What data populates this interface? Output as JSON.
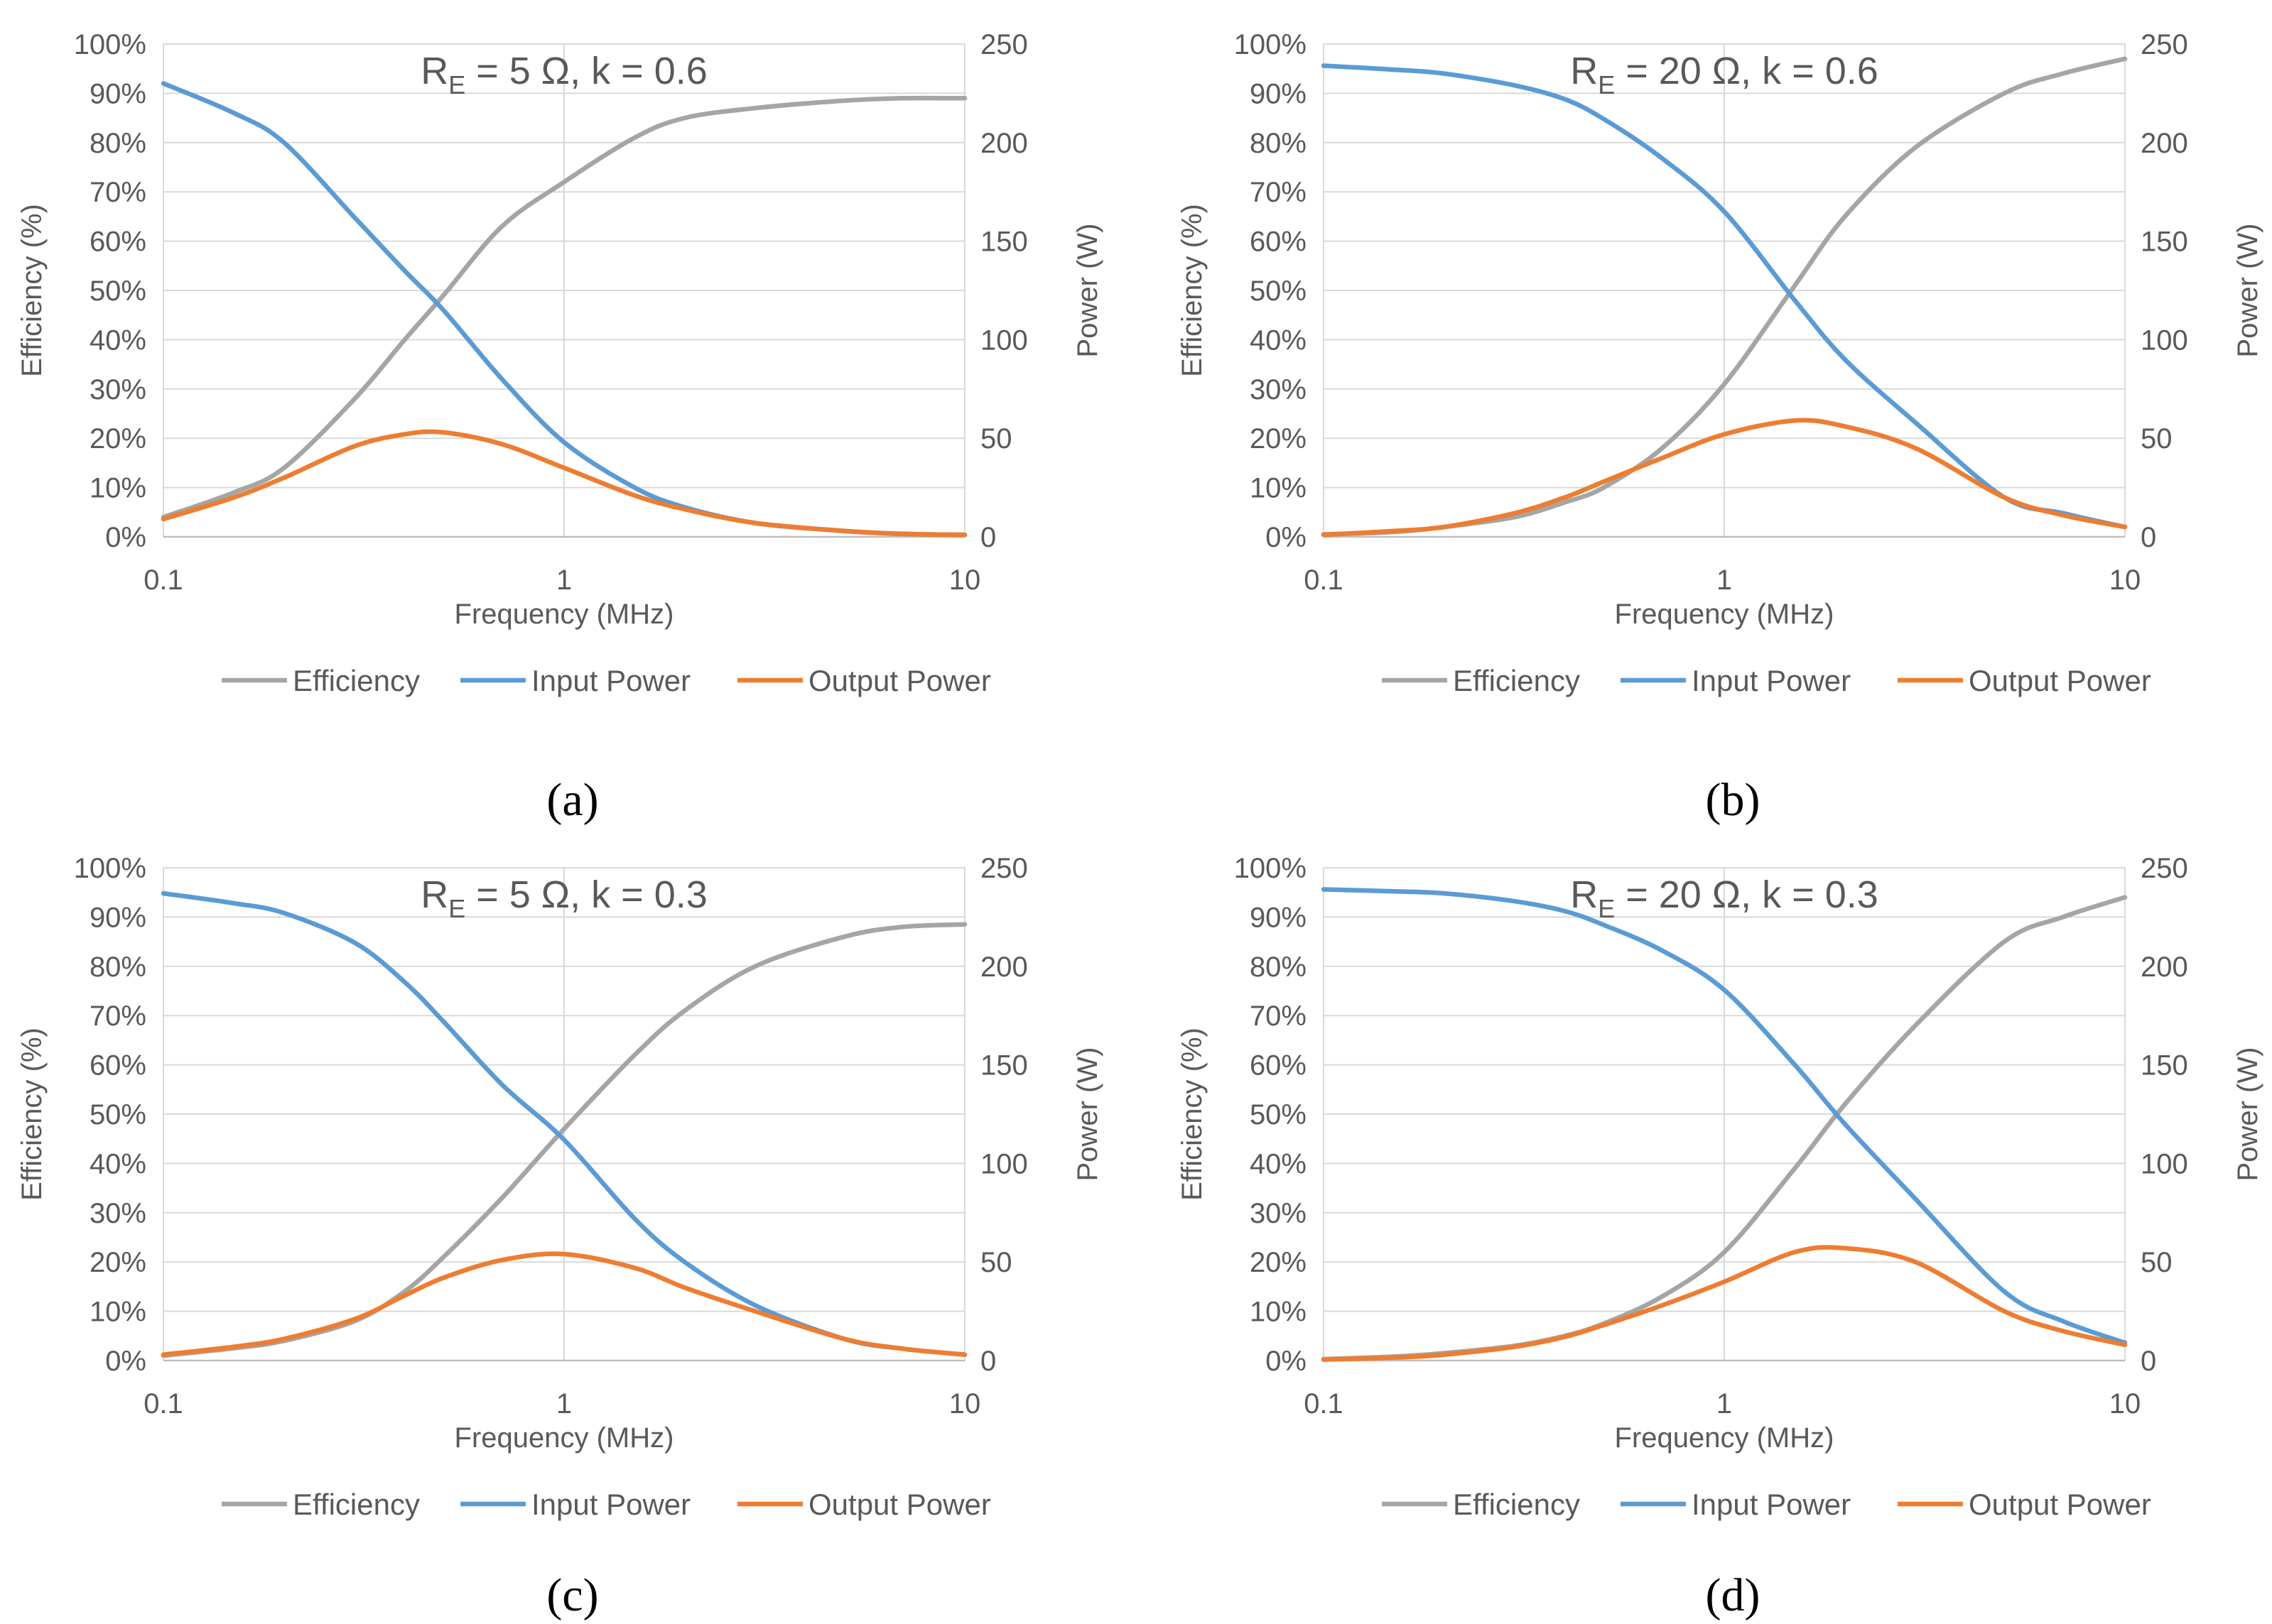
{
  "chart_data": [
    {
      "type": "line",
      "panel_label": "(a)",
      "title": "R_E = 5 Ω, k = 0.6",
      "title_main": "R",
      "title_sub": "E",
      "title_rest": " = 5 Ω, k = 0.6",
      "xlabel": "Frequency (MHz)",
      "ylabel_left": "Efficiency (%)",
      "ylabel_right": "Power (W)",
      "xscale": "log",
      "xlim": [
        0.1,
        10
      ],
      "x_ticks": [
        "0.1",
        "1",
        "10"
      ],
      "ylim_left": [
        0,
        100
      ],
      "y_ticks_left": [
        "0%",
        "10%",
        "20%",
        "30%",
        "40%",
        "50%",
        "60%",
        "70%",
        "80%",
        "90%",
        "100%"
      ],
      "ylim_right": [
        0,
        250
      ],
      "y_ticks_right": [
        "0",
        "50",
        "100",
        "150",
        "200",
        "250"
      ],
      "x": [
        0.1,
        0.15,
        0.2,
        0.3,
        0.4,
        0.5,
        0.7,
        1,
        1.5,
        2,
        3,
        5,
        7,
        10
      ],
      "series": [
        {
          "name": "Efficiency",
          "axis": "left",
          "color": "#A5A5A5",
          "values": [
            4,
            9,
            14,
            28,
            40,
            49,
            63,
            72,
            81,
            85,
            87,
            88.5,
            89,
            89
          ]
        },
        {
          "name": "Input Power",
          "axis": "right",
          "color": "#5B9BD5",
          "values": [
            230,
            215,
            200,
            162,
            135,
            115,
            80,
            48,
            25,
            15,
            7,
            3,
            1.5,
            1
          ]
        },
        {
          "name": "Output Power",
          "axis": "right",
          "color": "#ED7D31",
          "values": [
            9,
            20,
            30,
            46,
            52,
            53,
            47,
            35,
            21,
            14,
            7,
            3,
            1.5,
            1
          ]
        }
      ],
      "legend": [
        "Efficiency",
        "Input Power",
        "Output Power"
      ]
    },
    {
      "type": "line",
      "panel_label": "(b)",
      "title": "R_E = 20 Ω, k = 0.6",
      "title_main": "R",
      "title_sub": "E",
      "title_rest": " = 20 Ω, k = 0.6",
      "xlabel": "Frequency (MHz)",
      "ylabel_left": "Efficiency (%)",
      "ylabel_right": "Power (W)",
      "xscale": "log",
      "xlim": [
        0.1,
        10
      ],
      "x_ticks": [
        "0.1",
        "1",
        "10"
      ],
      "ylim_left": [
        0,
        100
      ],
      "y_ticks_left": [
        "0%",
        "10%",
        "20%",
        "30%",
        "40%",
        "50%",
        "60%",
        "70%",
        "80%",
        "90%",
        "100%"
      ],
      "ylim_right": [
        0,
        250
      ],
      "y_ticks_right": [
        "0",
        "50",
        "100",
        "150",
        "200",
        "250"
      ],
      "x": [
        0.1,
        0.15,
        0.2,
        0.3,
        0.4,
        0.5,
        0.7,
        1,
        1.5,
        2,
        3,
        5,
        7,
        10
      ],
      "series": [
        {
          "name": "Efficiency",
          "axis": "left",
          "color": "#A5A5A5",
          "values": [
            0.5,
            1,
            2,
            4,
            7,
            10,
            18,
            31,
            51,
            65,
            79,
            90,
            94,
            97
          ]
        },
        {
          "name": "Input Power",
          "axis": "right",
          "color": "#5B9BD5",
          "values": [
            239,
            237,
            235,
            229,
            222,
            212,
            192,
            165,
            120,
            90,
            58,
            20,
            12,
            5
          ]
        },
        {
          "name": "Output Power",
          "axis": "right",
          "color": "#ED7D31",
          "values": [
            1,
            3,
            5,
            12,
            20,
            28,
            40,
            52,
            59,
            56,
            45,
            20,
            11,
            5
          ]
        }
      ],
      "legend": [
        "Efficiency",
        "Input Power",
        "Output Power"
      ]
    },
    {
      "type": "line",
      "panel_label": "(c)",
      "title": "R_E = 5 Ω, k = 0.3",
      "title_main": "R",
      "title_sub": "E",
      "title_rest": " = 5 Ω, k = 0.3",
      "xlabel": "Frequency (MHz)",
      "ylabel_left": "Efficiency (%)",
      "ylabel_right": "Power (W)",
      "xscale": "log",
      "xlim": [
        0.1,
        10
      ],
      "x_ticks": [
        "0.1",
        "1",
        "10"
      ],
      "ylim_left": [
        0,
        100
      ],
      "y_ticks_left": [
        "0%",
        "10%",
        "20%",
        "30%",
        "40%",
        "50%",
        "60%",
        "70%",
        "80%",
        "90%",
        "100%"
      ],
      "ylim_right": [
        0,
        250
      ],
      "y_ticks_right": [
        "0",
        "50",
        "100",
        "150",
        "200",
        "250"
      ],
      "x": [
        0.1,
        0.15,
        0.2,
        0.3,
        0.4,
        0.5,
        0.7,
        1,
        1.5,
        2,
        3,
        5,
        7,
        10
      ],
      "series": [
        {
          "name": "Efficiency",
          "axis": "left",
          "color": "#A5A5A5",
          "values": [
            1,
            2.5,
            4,
            8,
            14,
            21,
            33,
            47,
            62,
            71,
            80,
            86,
            88,
            88.5
          ]
        },
        {
          "name": "Input Power",
          "axis": "right",
          "color": "#5B9BD5",
          "values": [
            237,
            232,
            227,
            212,
            192,
            172,
            140,
            112,
            72,
            50,
            28,
            11,
            6,
            3
          ]
        },
        {
          "name": "Output Power",
          "axis": "right",
          "color": "#ED7D31",
          "values": [
            3,
            7,
            11,
            21,
            33,
            42,
            51,
            54,
            47,
            37,
            25,
            11,
            6,
            3
          ]
        }
      ],
      "legend": [
        "Efficiency",
        "Input Power",
        "Output Power"
      ]
    },
    {
      "type": "line",
      "panel_label": "(d)",
      "title": "R_E = 20 Ω, k = 0.3",
      "title_main": "R",
      "title_sub": "E",
      "title_rest": " = 20 Ω, k = 0.3",
      "xlabel": "Frequency (MHz)",
      "ylabel_left": "Efficiency (%)",
      "ylabel_right": "Power (W)",
      "xscale": "log",
      "xlim": [
        0.1,
        10
      ],
      "x_ticks": [
        "0.1",
        "1",
        "10"
      ],
      "ylim_left": [
        0,
        100
      ],
      "y_ticks_left": [
        "0%",
        "10%",
        "20%",
        "30%",
        "40%",
        "50%",
        "60%",
        "70%",
        "80%",
        "90%",
        "100%"
      ],
      "ylim_right": [
        0,
        250
      ],
      "y_ticks_right": [
        "0",
        "50",
        "100",
        "150",
        "200",
        "250"
      ],
      "x": [
        0.1,
        0.15,
        0.2,
        0.3,
        0.4,
        0.5,
        0.7,
        1,
        1.5,
        2,
        3,
        5,
        7,
        10
      ],
      "series": [
        {
          "name": "Efficiency",
          "axis": "left",
          "color": "#A5A5A5",
          "values": [
            0.3,
            0.8,
            1.5,
            3,
            5,
            7.5,
            13,
            22,
            39,
            52,
            68,
            85,
            90,
            94
          ]
        },
        {
          "name": "Input Power",
          "axis": "right",
          "color": "#5B9BD5",
          "values": [
            239,
            238,
            237,
            233,
            228,
            221,
            208,
            188,
            150,
            120,
            82,
            35,
            20,
            9
          ]
        },
        {
          "name": "Output Power",
          "axis": "right",
          "color": "#ED7D31",
          "values": [
            0.5,
            1.5,
            3,
            7,
            12,
            18,
            28,
            40,
            55,
            57,
            50,
            25,
            15,
            8
          ]
        }
      ],
      "legend": [
        "Efficiency",
        "Input Power",
        "Output Power"
      ]
    }
  ]
}
